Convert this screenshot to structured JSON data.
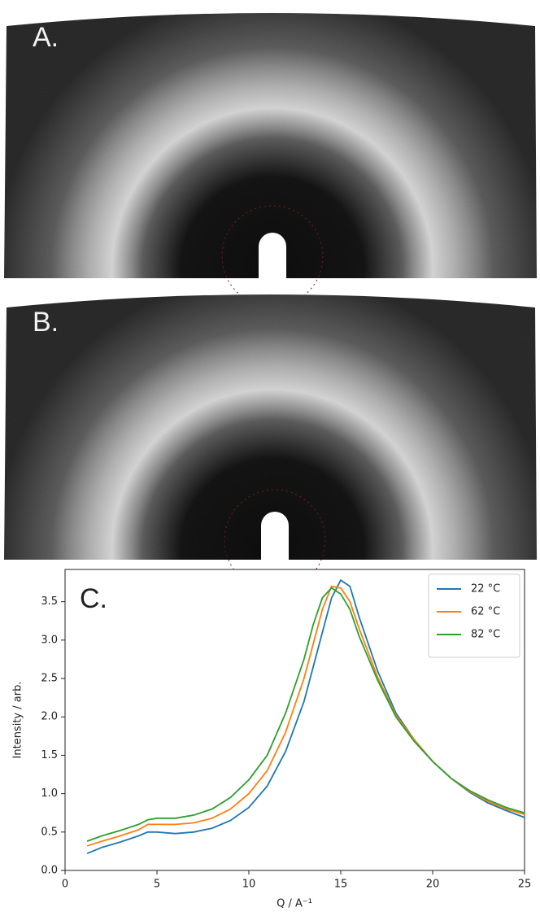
{
  "panels": [
    {
      "label": "A."
    },
    {
      "label": "B."
    }
  ],
  "chart_data": {
    "type": "line",
    "annotation": "C.",
    "xlabel": "Q / A⁻¹",
    "ylabel": "Intensity / arb.",
    "x": [
      1.2,
      2,
      3,
      4,
      4.5,
      5,
      6,
      7,
      8,
      9,
      10,
      11,
      12,
      13,
      13.5,
      14,
      14.5,
      15,
      15.5,
      16,
      17,
      18,
      19,
      20,
      21,
      22,
      23,
      24,
      25
    ],
    "series": [
      {
        "name": "22 °C",
        "color": "#1f77b4",
        "values": [
          0.22,
          0.3,
          0.37,
          0.45,
          0.5,
          0.5,
          0.48,
          0.5,
          0.55,
          0.65,
          0.82,
          1.1,
          1.55,
          2.2,
          2.65,
          3.1,
          3.55,
          3.78,
          3.7,
          3.3,
          2.6,
          2.05,
          1.7,
          1.42,
          1.2,
          1.02,
          0.88,
          0.78,
          0.69
        ]
      },
      {
        "name": "62 °C",
        "color": "#ff7f0e",
        "values": [
          0.32,
          0.38,
          0.45,
          0.53,
          0.6,
          0.6,
          0.6,
          0.62,
          0.68,
          0.8,
          1.0,
          1.3,
          1.8,
          2.5,
          2.95,
          3.4,
          3.7,
          3.68,
          3.5,
          3.15,
          2.52,
          2.02,
          1.7,
          1.42,
          1.2,
          1.03,
          0.9,
          0.8,
          0.73
        ]
      },
      {
        "name": "82 °C",
        "color": "#2ca02c",
        "values": [
          0.38,
          0.45,
          0.52,
          0.6,
          0.66,
          0.68,
          0.68,
          0.72,
          0.8,
          0.95,
          1.18,
          1.5,
          2.05,
          2.75,
          3.2,
          3.55,
          3.68,
          3.6,
          3.4,
          3.05,
          2.48,
          2.0,
          1.68,
          1.42,
          1.2,
          1.04,
          0.92,
          0.82,
          0.75
        ]
      }
    ],
    "xlim": [
      0,
      25
    ],
    "xticks": [
      0,
      5,
      10,
      15,
      20,
      25
    ],
    "ylim": [
      0,
      3.92
    ],
    "yticks": [
      {
        "value": 0,
        "label": "0.0"
      },
      0.5,
      {
        "value": 1,
        "label": "1.0"
      },
      1.5,
      {
        "value": 2,
        "label": "2.0"
      },
      2.5,
      {
        "value": 3,
        "label": "3.0"
      },
      3.5
    ],
    "legend": "upper right"
  }
}
